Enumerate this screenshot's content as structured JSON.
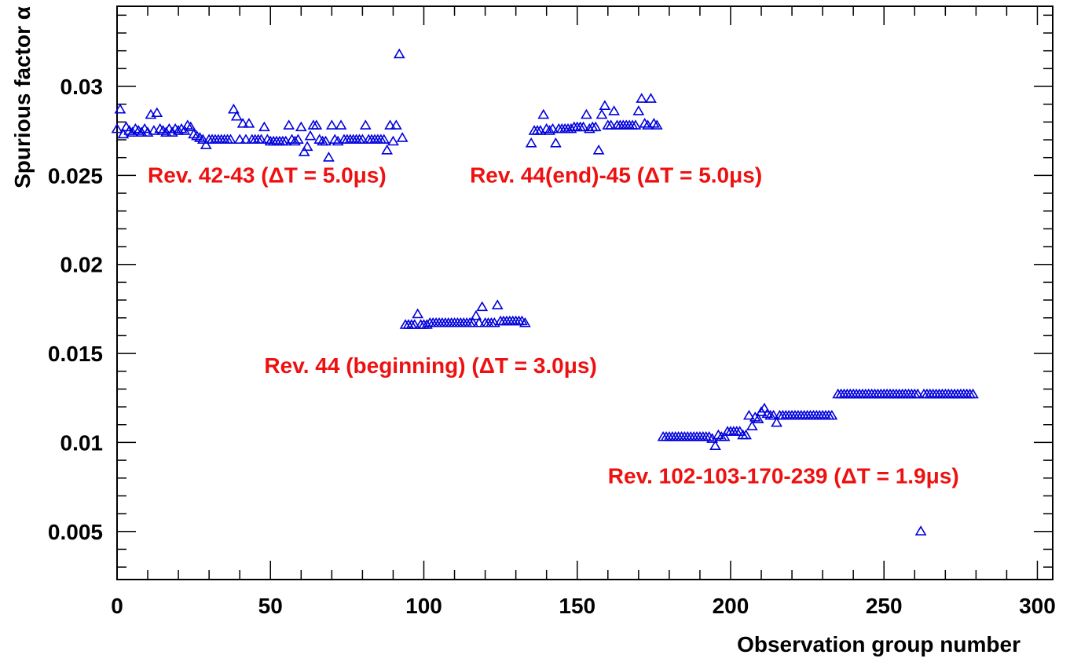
{
  "chart_data": {
    "type": "scatter",
    "title": "",
    "xlabel": "Observation group number",
    "ylabel": "Spurious factor α",
    "xlim": [
      0,
      305
    ],
    "ylim": [
      0.0023,
      0.0345
    ],
    "x_ticks": [
      {
        "value": 0,
        "label": "0"
      },
      {
        "value": 50,
        "label": "50"
      },
      {
        "value": 100,
        "label": "100"
      },
      {
        "value": 150,
        "label": "150"
      },
      {
        "value": 200,
        "label": "200"
      },
      {
        "value": 250,
        "label": "250"
      },
      {
        "value": 300,
        "label": "300"
      }
    ],
    "y_ticks": [
      {
        "value": 0.005,
        "label": "0.005"
      },
      {
        "value": 0.01,
        "label": "0.01"
      },
      {
        "value": 0.015,
        "label": "0.015"
      },
      {
        "value": 0.02,
        "label": "0.02"
      },
      {
        "value": 0.025,
        "label": "0.025"
      },
      {
        "value": 0.03,
        "label": "0.03"
      }
    ],
    "x_minor_step": 10,
    "y_minor_step": 0.001,
    "grid": false,
    "marker": "open-triangle",
    "marker_color": "#0000dd",
    "annotation_color": "#ee1111",
    "annotations": [
      {
        "text": "Rev. 42-43 (ΔT = 5.0μs)",
        "x": 10,
        "y": 0.0246
      },
      {
        "text": "Rev. 44(end)-45 (ΔT = 5.0μs)",
        "x": 115,
        "y": 0.0246
      },
      {
        "text": "Rev. 44 (beginning) (ΔT = 3.0μs)",
        "x": 48,
        "y": 0.0139
      },
      {
        "text": "Rev. 102-103-170-239 (ΔT = 1.9μs)",
        "x": 160,
        "y": 0.0077
      }
    ],
    "series": [
      {
        "values": [
          [
            0,
            0.0276
          ],
          [
            1,
            0.0287
          ],
          [
            2,
            0.0273
          ],
          [
            3,
            0.0277
          ],
          [
            4,
            0.0275
          ],
          [
            5,
            0.0274
          ],
          [
            6,
            0.0276
          ],
          [
            7,
            0.0275
          ],
          [
            8,
            0.0274
          ],
          [
            9,
            0.0276
          ],
          [
            10,
            0.0274
          ],
          [
            11,
            0.0284
          ],
          [
            12,
            0.0275
          ],
          [
            13,
            0.0285
          ],
          [
            14,
            0.0276
          ],
          [
            15,
            0.0275
          ],
          [
            16,
            0.0274
          ],
          [
            17,
            0.0276
          ],
          [
            18,
            0.0274
          ],
          [
            19,
            0.0276
          ],
          [
            20,
            0.0275
          ],
          [
            21,
            0.0276
          ],
          [
            22,
            0.0275
          ],
          [
            23,
            0.0278
          ],
          [
            24,
            0.0277
          ],
          [
            25,
            0.0273
          ],
          [
            26,
            0.0272
          ],
          [
            27,
            0.0271
          ],
          [
            28,
            0.027
          ],
          [
            29,
            0.0267
          ],
          [
            30,
            0.027
          ],
          [
            31,
            0.027
          ],
          [
            32,
            0.027
          ],
          [
            33,
            0.027
          ],
          [
            34,
            0.027
          ],
          [
            35,
            0.027
          ],
          [
            36,
            0.027
          ],
          [
            37,
            0.027
          ],
          [
            38,
            0.0287
          ],
          [
            39,
            0.0283
          ],
          [
            40,
            0.027
          ],
          [
            41,
            0.0279
          ],
          [
            42,
            0.027
          ],
          [
            43,
            0.0279
          ],
          [
            44,
            0.027
          ],
          [
            45,
            0.027
          ],
          [
            46,
            0.027
          ],
          [
            47,
            0.027
          ],
          [
            48,
            0.0277
          ],
          [
            49,
            0.027
          ],
          [
            50,
            0.0269
          ],
          [
            51,
            0.0269
          ],
          [
            52,
            0.0269
          ],
          [
            53,
            0.0269
          ],
          [
            54,
            0.0269
          ],
          [
            55,
            0.0269
          ],
          [
            56,
            0.0278
          ],
          [
            57,
            0.027
          ],
          [
            58,
            0.0269
          ],
          [
            59,
            0.027
          ],
          [
            60,
            0.0277
          ],
          [
            61,
            0.0263
          ],
          [
            62,
            0.0266
          ],
          [
            63,
            0.0272
          ],
          [
            64,
            0.0278
          ],
          [
            65,
            0.0278
          ],
          [
            66,
            0.027
          ],
          [
            67,
            0.0269
          ],
          [
            68,
            0.0269
          ],
          [
            69,
            0.026
          ],
          [
            70,
            0.0278
          ],
          [
            71,
            0.027
          ],
          [
            72,
            0.0269
          ],
          [
            73,
            0.0278
          ],
          [
            74,
            0.027
          ],
          [
            75,
            0.027
          ],
          [
            76,
            0.027
          ],
          [
            77,
            0.027
          ],
          [
            78,
            0.027
          ],
          [
            79,
            0.027
          ],
          [
            80,
            0.027
          ],
          [
            81,
            0.0278
          ],
          [
            82,
            0.027
          ],
          [
            83,
            0.027
          ],
          [
            84,
            0.027
          ],
          [
            85,
            0.027
          ],
          [
            86,
            0.027
          ],
          [
            87,
            0.027
          ],
          [
            88,
            0.0264
          ],
          [
            89,
            0.0278
          ],
          [
            90,
            0.0269
          ],
          [
            91,
            0.0278
          ],
          [
            92,
            0.0318
          ],
          [
            93,
            0.0271
          ],
          [
            94,
            0.0166
          ],
          [
            95,
            0.0166
          ],
          [
            96,
            0.0166
          ],
          [
            97,
            0.0166
          ],
          [
            98,
            0.0172
          ],
          [
            99,
            0.0166
          ],
          [
            100,
            0.0166
          ],
          [
            101,
            0.0166
          ],
          [
            102,
            0.0167
          ],
          [
            103,
            0.0167
          ],
          [
            104,
            0.0167
          ],
          [
            105,
            0.0167
          ],
          [
            106,
            0.0167
          ],
          [
            107,
            0.0167
          ],
          [
            108,
            0.0167
          ],
          [
            109,
            0.0167
          ],
          [
            110,
            0.0167
          ],
          [
            111,
            0.0167
          ],
          [
            112,
            0.0167
          ],
          [
            113,
            0.0167
          ],
          [
            114,
            0.0167
          ],
          [
            115,
            0.0167
          ],
          [
            116,
            0.0167
          ],
          [
            117,
            0.0171
          ],
          [
            118,
            0.0167
          ],
          [
            119,
            0.0176
          ],
          [
            120,
            0.0167
          ],
          [
            121,
            0.0167
          ],
          [
            122,
            0.0167
          ],
          [
            123,
            0.0167
          ],
          [
            124,
            0.0177
          ],
          [
            125,
            0.0168
          ],
          [
            126,
            0.0168
          ],
          [
            127,
            0.0168
          ],
          [
            128,
            0.0168
          ],
          [
            129,
            0.0168
          ],
          [
            130,
            0.0168
          ],
          [
            131,
            0.0168
          ],
          [
            132,
            0.0168
          ],
          [
            133,
            0.0167
          ],
          [
            135,
            0.0268
          ],
          [
            136,
            0.0275
          ],
          [
            137,
            0.0275
          ],
          [
            138,
            0.0275
          ],
          [
            139,
            0.0284
          ],
          [
            140,
            0.0276
          ],
          [
            141,
            0.0275
          ],
          [
            142,
            0.0276
          ],
          [
            143,
            0.0268
          ],
          [
            144,
            0.0276
          ],
          [
            145,
            0.0276
          ],
          [
            146,
            0.0276
          ],
          [
            147,
            0.0276
          ],
          [
            148,
            0.0276
          ],
          [
            149,
            0.0277
          ],
          [
            150,
            0.0277
          ],
          [
            151,
            0.0277
          ],
          [
            152,
            0.0277
          ],
          [
            153,
            0.0284
          ],
          [
            154,
            0.0276
          ],
          [
            155,
            0.0277
          ],
          [
            156,
            0.0277
          ],
          [
            157,
            0.0264
          ],
          [
            158,
            0.0284
          ],
          [
            159,
            0.0289
          ],
          [
            160,
            0.0278
          ],
          [
            161,
            0.0278
          ],
          [
            162,
            0.0286
          ],
          [
            163,
            0.0278
          ],
          [
            164,
            0.0278
          ],
          [
            165,
            0.0278
          ],
          [
            166,
            0.0278
          ],
          [
            167,
            0.0278
          ],
          [
            168,
            0.0278
          ],
          [
            169,
            0.0278
          ],
          [
            170,
            0.0286
          ],
          [
            171,
            0.0293
          ],
          [
            172,
            0.0279
          ],
          [
            173,
            0.0278
          ],
          [
            174,
            0.0293
          ],
          [
            175,
            0.0279
          ],
          [
            176,
            0.0278
          ],
          [
            178,
            0.0103
          ],
          [
            179,
            0.0103
          ],
          [
            180,
            0.0103
          ],
          [
            181,
            0.0103
          ],
          [
            182,
            0.0103
          ],
          [
            183,
            0.0103
          ],
          [
            184,
            0.0103
          ],
          [
            185,
            0.0103
          ],
          [
            186,
            0.0103
          ],
          [
            187,
            0.0103
          ],
          [
            188,
            0.0103
          ],
          [
            189,
            0.0103
          ],
          [
            190,
            0.0103
          ],
          [
            191,
            0.0103
          ],
          [
            192,
            0.0103
          ],
          [
            193,
            0.0103
          ],
          [
            194,
            0.0102
          ],
          [
            195,
            0.0098
          ],
          [
            196,
            0.0104
          ],
          [
            197,
            0.0103
          ],
          [
            198,
            0.0103
          ],
          [
            199,
            0.0106
          ],
          [
            200,
            0.0106
          ],
          [
            201,
            0.0106
          ],
          [
            202,
            0.0106
          ],
          [
            203,
            0.0106
          ],
          [
            204,
            0.0104
          ],
          [
            205,
            0.0104
          ],
          [
            206,
            0.0115
          ],
          [
            207,
            0.0109
          ],
          [
            208,
            0.0114
          ],
          [
            209,
            0.0113
          ],
          [
            210,
            0.0117
          ],
          [
            211,
            0.0119
          ],
          [
            212,
            0.0116
          ],
          [
            213,
            0.0115
          ],
          [
            214,
            0.0115
          ],
          [
            215,
            0.0111
          ],
          [
            216,
            0.0115
          ],
          [
            217,
            0.0115
          ],
          [
            218,
            0.0115
          ],
          [
            219,
            0.0115
          ],
          [
            220,
            0.0115
          ],
          [
            221,
            0.0115
          ],
          [
            222,
            0.0115
          ],
          [
            223,
            0.0115
          ],
          [
            224,
            0.0115
          ],
          [
            225,
            0.0115
          ],
          [
            226,
            0.0115
          ],
          [
            227,
            0.0115
          ],
          [
            228,
            0.0115
          ],
          [
            229,
            0.0115
          ],
          [
            230,
            0.0115
          ],
          [
            231,
            0.0115
          ],
          [
            232,
            0.0115
          ],
          [
            233,
            0.0115
          ],
          [
            235,
            0.0127
          ],
          [
            236,
            0.0127
          ],
          [
            237,
            0.0127
          ],
          [
            238,
            0.0127
          ],
          [
            239,
            0.0127
          ],
          [
            240,
            0.0127
          ],
          [
            241,
            0.0127
          ],
          [
            242,
            0.0127
          ],
          [
            243,
            0.0127
          ],
          [
            244,
            0.0127
          ],
          [
            245,
            0.0127
          ],
          [
            246,
            0.0127
          ],
          [
            247,
            0.0127
          ],
          [
            248,
            0.0127
          ],
          [
            249,
            0.0127
          ],
          [
            250,
            0.0127
          ],
          [
            251,
            0.0127
          ],
          [
            252,
            0.0127
          ],
          [
            253,
            0.0127
          ],
          [
            254,
            0.0127
          ],
          [
            255,
            0.0127
          ],
          [
            256,
            0.0127
          ],
          [
            257,
            0.0127
          ],
          [
            258,
            0.0127
          ],
          [
            259,
            0.0127
          ],
          [
            260,
            0.0127
          ],
          [
            261,
            0.0127
          ],
          [
            262,
            0.005
          ],
          [
            263,
            0.0127
          ],
          [
            264,
            0.0127
          ],
          [
            265,
            0.0127
          ],
          [
            266,
            0.0127
          ],
          [
            267,
            0.0127
          ],
          [
            268,
            0.0127
          ],
          [
            269,
            0.0127
          ],
          [
            270,
            0.0127
          ],
          [
            271,
            0.0127
          ],
          [
            272,
            0.0127
          ],
          [
            273,
            0.0127
          ],
          [
            274,
            0.0127
          ],
          [
            275,
            0.0127
          ],
          [
            276,
            0.0127
          ],
          [
            277,
            0.0127
          ],
          [
            278,
            0.0127
          ],
          [
            279,
            0.0127
          ]
        ]
      }
    ]
  }
}
